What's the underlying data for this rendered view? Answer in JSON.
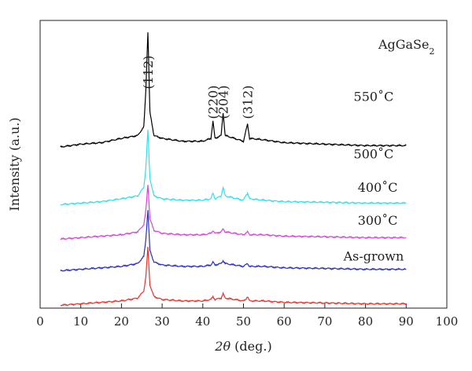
{
  "chart_data": {
    "type": "line",
    "title": "",
    "xlabel": {
      "italic_symbol": "2θ",
      "rest": " (deg.)"
    },
    "ylabel": "Intensity (a.u.)",
    "xlim": [
      0,
      100
    ],
    "xticks": [
      "0",
      "10",
      "20",
      "30",
      "40",
      "50",
      "60",
      "70",
      "80",
      "90",
      "100"
    ],
    "yticks_shown": false,
    "grid": false,
    "material_label": {
      "base": "AgGaSe",
      "subscript": "2"
    },
    "peaks": [
      {
        "label": "(112)",
        "x": 26.5
      },
      {
        "label": "(220)",
        "x": 42.5
      },
      {
        "label": "(204)",
        "x": 45.0
      },
      {
        "label": "(312)",
        "x": 51.0
      }
    ],
    "series": [
      {
        "name": "550˚C",
        "color": "#000000",
        "baseline": 0.56,
        "x": [
          5,
          10,
          15,
          20,
          24,
          25.5,
          26,
          26.5,
          27,
          28,
          30,
          35,
          40,
          42,
          42.5,
          43,
          44.5,
          45,
          45.5,
          50,
          50.5,
          51,
          51.5,
          55,
          60,
          70,
          80,
          90
        ],
        "y": [
          0.0,
          0.01,
          0.015,
          0.03,
          0.04,
          0.07,
          0.2,
          0.4,
          0.12,
          0.04,
          0.03,
          0.02,
          0.02,
          0.03,
          0.09,
          0.03,
          0.04,
          0.12,
          0.04,
          0.02,
          0.05,
          0.08,
          0.03,
          0.025,
          0.015,
          0.01,
          0.005,
          0.005
        ]
      },
      {
        "name": "500˚C",
        "color": "#33e0e8",
        "baseline": 0.36,
        "x": [
          5,
          10,
          15,
          20,
          24,
          25.5,
          26,
          26.5,
          27,
          28,
          30,
          35,
          40,
          42,
          42.5,
          43,
          44.5,
          45,
          45.5,
          50,
          50.5,
          51,
          51.5,
          55,
          60,
          70,
          80,
          90
        ],
        "y": [
          0.0,
          0.005,
          0.01,
          0.02,
          0.03,
          0.06,
          0.13,
          0.26,
          0.09,
          0.03,
          0.02,
          0.015,
          0.015,
          0.02,
          0.04,
          0.02,
          0.03,
          0.06,
          0.03,
          0.015,
          0.03,
          0.04,
          0.02,
          0.015,
          0.01,
          0.008,
          0.005,
          0.005
        ]
      },
      {
        "name": "400˚C",
        "color": "#d646d6",
        "baseline": 0.24,
        "x": [
          5,
          10,
          15,
          20,
          24,
          25.5,
          26,
          26.5,
          27,
          28,
          30,
          35,
          40,
          42,
          42.5,
          43,
          44.5,
          45,
          45.5,
          50,
          50.5,
          51,
          51.5,
          55,
          60,
          70,
          80,
          90
        ],
        "y": [
          0.0,
          0.005,
          0.01,
          0.015,
          0.025,
          0.05,
          0.1,
          0.19,
          0.07,
          0.03,
          0.02,
          0.015,
          0.015,
          0.02,
          0.03,
          0.02,
          0.025,
          0.035,
          0.025,
          0.015,
          0.02,
          0.025,
          0.015,
          0.015,
          0.01,
          0.008,
          0.005,
          0.005
        ]
      },
      {
        "name": "300˚C",
        "color": "#2a2ec4",
        "baseline": 0.13,
        "x": [
          5,
          10,
          15,
          20,
          24,
          25.5,
          26,
          26.5,
          27,
          28,
          30,
          35,
          40,
          42,
          42.5,
          43,
          44.5,
          45,
          45.5,
          50,
          50.5,
          51,
          51.5,
          55,
          60,
          70,
          80,
          90
        ],
        "y": [
          0.0,
          0.005,
          0.01,
          0.015,
          0.025,
          0.05,
          0.11,
          0.21,
          0.07,
          0.03,
          0.02,
          0.015,
          0.015,
          0.02,
          0.03,
          0.02,
          0.025,
          0.035,
          0.025,
          0.015,
          0.02,
          0.025,
          0.015,
          0.015,
          0.01,
          0.008,
          0.005,
          0.005
        ]
      },
      {
        "name": "As-grown",
        "color": "#e8332c",
        "baseline": 0.01,
        "x": [
          5,
          10,
          15,
          20,
          24,
          25.5,
          26,
          26.5,
          27,
          28,
          30,
          35,
          40,
          42,
          42.5,
          43,
          44.5,
          45,
          45.5,
          50,
          50.5,
          51,
          51.5,
          55,
          60,
          70,
          80,
          90
        ],
        "y": [
          0.0,
          0.005,
          0.01,
          0.015,
          0.025,
          0.05,
          0.1,
          0.2,
          0.07,
          0.03,
          0.02,
          0.015,
          0.015,
          0.02,
          0.03,
          0.02,
          0.025,
          0.04,
          0.025,
          0.015,
          0.02,
          0.03,
          0.015,
          0.015,
          0.01,
          0.008,
          0.005,
          0.005
        ]
      }
    ]
  }
}
